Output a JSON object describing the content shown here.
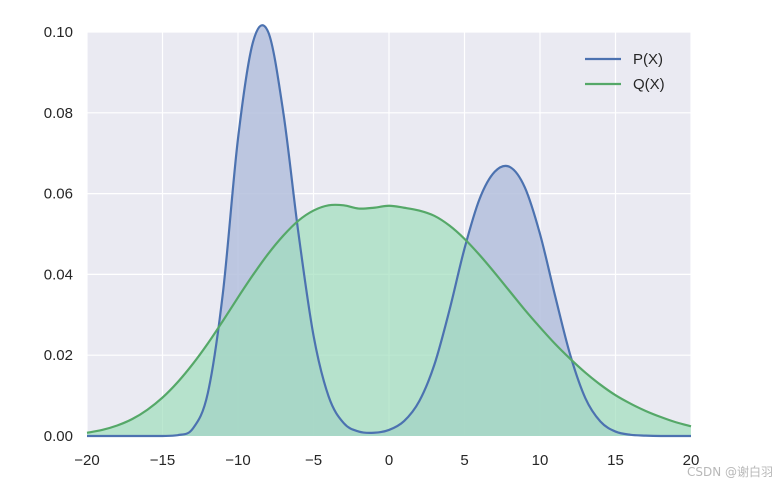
{
  "chart_data": {
    "type": "area",
    "title": "",
    "xlabel": "",
    "ylabel": "",
    "xlim": [
      -20,
      20
    ],
    "ylim": [
      0,
      0.1
    ],
    "grid": true,
    "background": "#eaeaf2",
    "legend_position": "top-right",
    "x_ticks": [
      -20,
      -15,
      -10,
      -5,
      0,
      5,
      10,
      15,
      20
    ],
    "x_tick_labels": [
      "−20",
      "−15",
      "−10",
      "−5",
      "0",
      "5",
      "10",
      "15",
      "20"
    ],
    "y_ticks": [
      0,
      0.02,
      0.04,
      0.06,
      0.08,
      0.1
    ],
    "y_tick_labels": [
      "0.00",
      "0.02",
      "0.04",
      "0.06",
      "0.08",
      "0.10"
    ],
    "x": [
      -20,
      -19,
      -18,
      -17,
      -16,
      -15,
      -14,
      -13,
      -12,
      -11,
      -10,
      -9,
      -8,
      -7,
      -6,
      -5,
      -4,
      -3,
      -2,
      -1,
      0,
      1,
      2,
      3,
      4,
      5,
      6,
      7,
      8,
      9,
      10,
      11,
      12,
      13,
      14,
      15,
      16,
      17,
      18,
      19,
      20
    ],
    "series": [
      {
        "name": "P(X)",
        "color": "#4c72b0",
        "fill": "#b4c0dd",
        "values": [
          0.0,
          0.0,
          0.0,
          0.0,
          0.0,
          0.0,
          0.0002,
          0.0018,
          0.0106,
          0.0354,
          0.0736,
          0.0976,
          0.1,
          0.0801,
          0.0503,
          0.0249,
          0.0098,
          0.0032,
          0.0011,
          0.0008,
          0.0015,
          0.0037,
          0.0086,
          0.0176,
          0.0311,
          0.0464,
          0.0587,
          0.0654,
          0.0666,
          0.0615,
          0.05,
          0.0347,
          0.0201,
          0.0094,
          0.0036,
          0.0011,
          0.0003,
          0.0001,
          0.0,
          0.0,
          0.0
        ]
      },
      {
        "name": "Q(X)",
        "color": "#55a868",
        "fill": "#9fdebc",
        "values": [
          0.0008,
          0.0015,
          0.0026,
          0.0042,
          0.0065,
          0.0095,
          0.0133,
          0.0178,
          0.0229,
          0.0285,
          0.0343,
          0.0399,
          0.0451,
          0.0496,
          0.0533,
          0.0558,
          0.0571,
          0.0571,
          0.0563,
          0.0565,
          0.057,
          0.0565,
          0.0558,
          0.0545,
          0.0521,
          0.0488,
          0.0448,
          0.0404,
          0.0358,
          0.0312,
          0.0269,
          0.0228,
          0.0191,
          0.0157,
          0.0127,
          0.0101,
          0.008,
          0.0062,
          0.0047,
          0.0034,
          0.0024
        ]
      }
    ]
  },
  "watermark": "CSDN @谢白羽"
}
